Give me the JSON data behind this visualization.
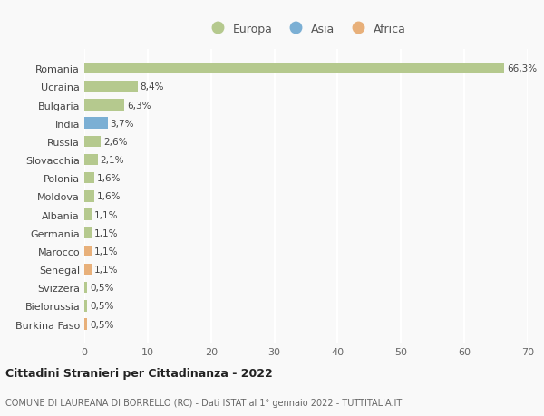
{
  "countries": [
    "Romania",
    "Ucraina",
    "Bulgaria",
    "India",
    "Russia",
    "Slovacchia",
    "Polonia",
    "Moldova",
    "Albania",
    "Germania",
    "Marocco",
    "Senegal",
    "Svizzera",
    "Bielorussia",
    "Burkina Faso"
  ],
  "values": [
    66.3,
    8.4,
    6.3,
    3.7,
    2.6,
    2.1,
    1.6,
    1.6,
    1.1,
    1.1,
    1.1,
    1.1,
    0.5,
    0.5,
    0.5
  ],
  "labels": [
    "66,3%",
    "8,4%",
    "6,3%",
    "3,7%",
    "2,6%",
    "2,1%",
    "1,6%",
    "1,6%",
    "1,1%",
    "1,1%",
    "1,1%",
    "1,1%",
    "0,5%",
    "0,5%",
    "0,5%"
  ],
  "continents": [
    "Europa",
    "Europa",
    "Europa",
    "Asia",
    "Europa",
    "Europa",
    "Europa",
    "Europa",
    "Europa",
    "Europa",
    "Africa",
    "Africa",
    "Europa",
    "Europa",
    "Africa"
  ],
  "colors": {
    "Europa": "#b5c98e",
    "Asia": "#7bafd4",
    "Africa": "#e8b07a"
  },
  "xlim": [
    0,
    70
  ],
  "xticks": [
    0,
    10,
    20,
    30,
    40,
    50,
    60,
    70
  ],
  "title": "Cittadini Stranieri per Cittadinanza - 2022",
  "subtitle": "COMUNE DI LAUREANA DI BORRELLO (RC) - Dati ISTAT al 1° gennaio 2022 - TUTTITALIA.IT",
  "background_color": "#f9f9f9",
  "grid_color": "#ffffff"
}
